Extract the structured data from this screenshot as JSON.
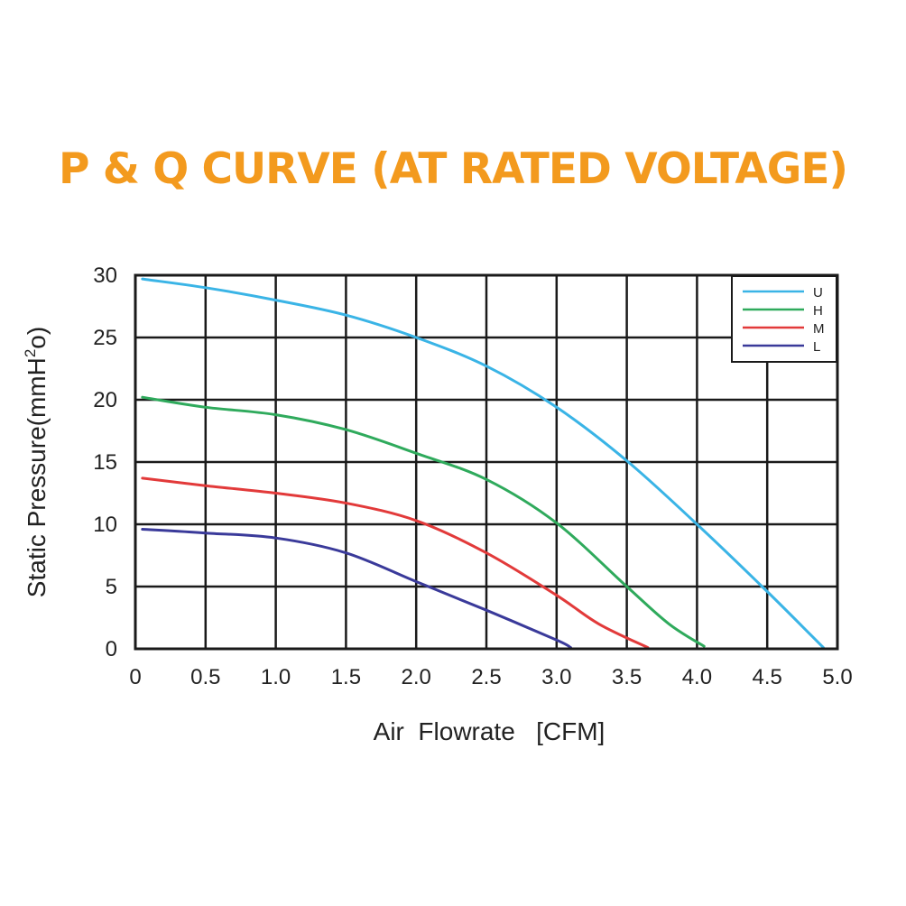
{
  "chart_data": {
    "type": "line",
    "title": "P & Q CURVE (AT RATED VOLTAGE)",
    "xlabel": "Air  Flowrate   [CFM]",
    "ylabel_main": "Static Pressure(mmH",
    "ylabel_sup": "2",
    "ylabel_end": "o)",
    "xlim": [
      0,
      5.0
    ],
    "ylim": [
      0,
      30
    ],
    "x_ticks": [
      "0",
      "0.5",
      "1.0",
      "1.5",
      "2.0",
      "2.5",
      "3.0",
      "3.5",
      "4.0",
      "4.5",
      "5.0"
    ],
    "y_ticks": [
      "0",
      "5",
      "10",
      "15",
      "20",
      "25",
      "30"
    ],
    "grid": true,
    "legend_position": "top-right",
    "series": [
      {
        "name": "U",
        "color": "#3ab4e6",
        "points": [
          [
            0.05,
            29.7
          ],
          [
            0.5,
            29.0
          ],
          [
            1.0,
            28.0
          ],
          [
            1.5,
            26.8
          ],
          [
            2.0,
            25.0
          ],
          [
            2.5,
            22.7
          ],
          [
            3.0,
            19.4
          ],
          [
            3.5,
            15.1
          ],
          [
            4.0,
            10.0
          ],
          [
            4.5,
            4.6
          ],
          [
            4.9,
            0.1
          ]
        ]
      },
      {
        "name": "H",
        "color": "#2faa5c",
        "points": [
          [
            0.05,
            20.2
          ],
          [
            0.5,
            19.4
          ],
          [
            1.0,
            18.8
          ],
          [
            1.5,
            17.6
          ],
          [
            2.0,
            15.7
          ],
          [
            2.5,
            13.6
          ],
          [
            3.0,
            10.1
          ],
          [
            3.5,
            5.0
          ],
          [
            3.8,
            2.0
          ],
          [
            4.05,
            0.2
          ]
        ]
      },
      {
        "name": "M",
        "color": "#e23a3a",
        "points": [
          [
            0.05,
            13.7
          ],
          [
            0.5,
            13.1
          ],
          [
            1.0,
            12.5
          ],
          [
            1.5,
            11.7
          ],
          [
            2.0,
            10.3
          ],
          [
            2.5,
            7.7
          ],
          [
            3.0,
            4.3
          ],
          [
            3.3,
            2.0
          ],
          [
            3.65,
            0.1
          ]
        ]
      },
      {
        "name": "L",
        "color": "#3a3a9a",
        "points": [
          [
            0.05,
            9.6
          ],
          [
            0.5,
            9.3
          ],
          [
            1.0,
            8.9
          ],
          [
            1.5,
            7.7
          ],
          [
            2.0,
            5.4
          ],
          [
            2.5,
            3.1
          ],
          [
            3.0,
            0.7
          ],
          [
            3.1,
            0.1
          ]
        ]
      }
    ]
  }
}
